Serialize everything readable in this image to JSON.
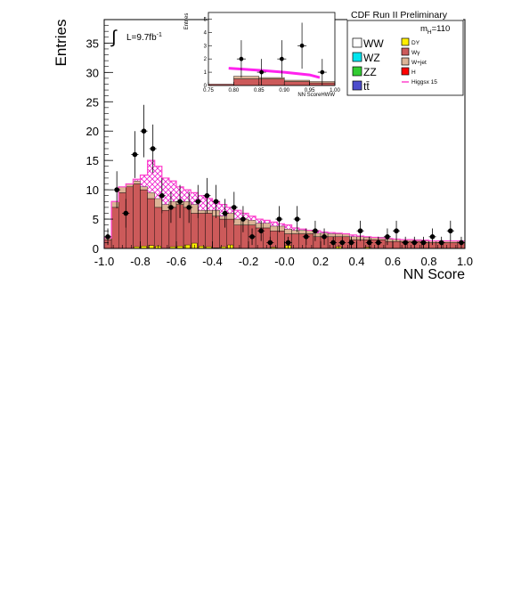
{
  "chart_data": {
    "type": "bar",
    "title": "CDF Run II Preliminary",
    "xlabel": "NN Score",
    "ylabel": "Entries",
    "xlim": [
      -1.0,
      1.0
    ],
    "ylim": [
      0,
      39
    ],
    "x_ticks": [
      "-1.0",
      "-0.8",
      "-0.6",
      "-0.4",
      "-0.2",
      "-0.0",
      "0.2",
      "0.4",
      "0.6",
      "0.8",
      "1.0"
    ],
    "y_ticks": [
      "0",
      "5",
      "10",
      "15",
      "20",
      "25",
      "30",
      "35"
    ],
    "annotations": {
      "luminosity": "L=9.7fb",
      "luminosity_sup": "-1",
      "integral": "∫",
      "mass_label": "m",
      "mass_sub": "H",
      "mass_value": "=110"
    },
    "bin_edges": [
      -1.0,
      -0.96,
      -0.92,
      -0.88,
      -0.84,
      -0.8,
      -0.76,
      -0.72,
      -0.68,
      -0.64,
      -0.6,
      -0.56,
      -0.52,
      -0.48,
      -0.44,
      -0.4,
      -0.36,
      -0.32,
      -0.28,
      -0.24,
      -0.2,
      -0.16,
      -0.12,
      -0.08,
      -0.04,
      0.0,
      0.04,
      0.08,
      0.12,
      0.16,
      0.2,
      0.24,
      0.28,
      0.32,
      0.36,
      0.4,
      0.44,
      0.48,
      0.52,
      0.56,
      0.6,
      0.64,
      0.68,
      0.72,
      0.76,
      0.8,
      0.84,
      0.88,
      0.92,
      0.96,
      1.0
    ],
    "series": [
      {
        "name": "Wγ",
        "color": "#cc5a5a",
        "values": [
          1.5,
          7,
          9.5,
          10.5,
          11,
          10,
          8.5,
          7,
          6.5,
          7,
          7.5,
          7,
          6,
          6,
          6,
          5.5,
          5,
          5,
          4,
          4,
          4,
          3.5,
          3.5,
          3,
          3,
          2.5,
          2.5,
          2.5,
          2.5,
          2,
          2,
          2,
          2,
          2,
          1.5,
          1.5,
          1.5,
          1.5,
          1.5,
          1.2,
          1.2,
          1.2,
          1.2,
          1.2,
          1,
          1,
          1,
          1,
          1,
          1
        ]
      },
      {
        "name": "W+jet",
        "color": "#dcb496",
        "values": [
          0.3,
          1,
          1,
          0.5,
          0.5,
          0.5,
          1,
          1.5,
          1,
          1,
          0.5,
          1,
          1.5,
          0.5,
          0.5,
          1,
          0.5,
          1,
          1,
          1,
          0.8,
          0.8,
          0.8,
          0.8,
          0.8,
          0.8,
          0.6,
          0.6,
          0.6,
          0.6,
          0.6,
          0.5,
          0.5,
          0.5,
          0.5,
          0.5,
          0.4,
          0.4,
          0.4,
          0.4,
          0.4,
          0.3,
          0.3,
          0.3,
          0.3,
          0.3,
          0.3,
          0.3,
          0.3,
          0.3
        ]
      },
      {
        "name": "DY",
        "color": "#ffee00",
        "values": [
          0,
          0,
          0,
          0,
          0.3,
          0.4,
          0.5,
          0.4,
          0,
          0.3,
          0.4,
          0.6,
          0.9,
          0.4,
          0.3,
          0.1,
          0.3,
          0.6,
          0,
          0,
          0,
          0,
          0,
          0.2,
          0,
          0.5,
          0,
          0,
          0,
          0,
          0,
          0,
          0.3,
          0,
          0,
          0,
          0.2,
          0,
          0,
          0,
          0,
          0,
          0,
          0,
          0,
          0,
          0,
          0,
          0,
          0
        ]
      },
      {
        "name": "WW",
        "color": "#ffffff",
        "values": []
      },
      {
        "name": "WZ",
        "color": "#00e5ee",
        "values": []
      },
      {
        "name": "ZZ",
        "color": "#33cc33",
        "values": []
      },
      {
        "name": "tt̄",
        "color": "#4c4ccc",
        "values": []
      },
      {
        "name": "H",
        "color": "#ff0000",
        "values": []
      },
      {
        "name": "Higgsx 15",
        "color": "#ff44cc",
        "values": []
      }
    ],
    "total_top": [
      1.8,
      8,
      10.5,
      11,
      11.8,
      12.5,
      15,
      14,
      12,
      11.5,
      10.5,
      10,
      9.5,
      9,
      8.5,
      8,
      7.5,
      7,
      6.5,
      6,
      5.5,
      5,
      4.8,
      4.5,
      4.2,
      4,
      3.5,
      3.3,
      3.1,
      3,
      2.8,
      2.7,
      2.6,
      2.5,
      2.3,
      2.1,
      2,
      1.9,
      1.8,
      1.7,
      1.6,
      1.5,
      1.5,
      1.4,
      1.4,
      1.3,
      1.3,
      1.3,
      1.3,
      1.3
    ],
    "data_points": {
      "x": [
        -0.98,
        -0.93,
        -0.88,
        -0.83,
        -0.78,
        -0.73,
        -0.68,
        -0.63,
        -0.58,
        -0.53,
        -0.48,
        -0.43,
        -0.38,
        -0.33,
        -0.28,
        -0.23,
        -0.18,
        -0.13,
        -0.08,
        -0.03,
        0.02,
        0.07,
        0.12,
        0.17,
        0.22,
        0.27,
        0.32,
        0.37,
        0.42,
        0.47,
        0.52,
        0.57,
        0.62,
        0.67,
        0.72,
        0.77,
        0.82,
        0.87,
        0.92,
        0.98
      ],
      "y": [
        2,
        10,
        6,
        16,
        20,
        17,
        9,
        7,
        8,
        7,
        8,
        9,
        8,
        6,
        7,
        5,
        2,
        3,
        1,
        5,
        1,
        5,
        2,
        3,
        2,
        1,
        1,
        1,
        3,
        1,
        1,
        2,
        3,
        1,
        1,
        1,
        2,
        1,
        3,
        1
      ]
    },
    "legend": [
      {
        "name": "WW",
        "color": "#ffffff"
      },
      {
        "name": "WZ",
        "color": "#00e5ee"
      },
      {
        "name": "ZZ",
        "color": "#33cc33"
      },
      {
        "name": "tt̄",
        "color": "#4c4ccc"
      },
      {
        "name": "DY",
        "color": "#ffee00"
      },
      {
        "name": "Wγ",
        "color": "#cc5a5a"
      },
      {
        "name": "W+jet",
        "color": "#dcb496"
      },
      {
        "name": "H",
        "color": "#ff0000"
      },
      {
        "name": "Higgsx 15",
        "color": "#ff44cc"
      }
    ],
    "inset": {
      "xlabel": "NN ScoreHWW",
      "ylabel": "Entries",
      "xlim": [
        0.75,
        1.0
      ],
      "ylim": [
        0,
        5.5
      ],
      "x_ticks": [
        "0.75",
        "0.80",
        "0.85",
        "0.90",
        "0.95",
        "1.00"
      ],
      "y_ticks": [
        "0",
        "1",
        "2",
        "3",
        "4",
        "5"
      ],
      "bin_edges": [
        0.75,
        0.8,
        0.85,
        0.9,
        0.95,
        1.0
      ],
      "wgamma": [
        0.1,
        0.5,
        0.5,
        0.3,
        0.2
      ],
      "wjet": [
        0,
        0.2,
        0.1,
        0.1,
        0.1
      ],
      "total_top": [
        0.1,
        0.8,
        0.7,
        0.6,
        0.4
      ],
      "signal_line": [
        [
          0.79,
          1.3
        ],
        [
          0.85,
          1.15
        ],
        [
          0.9,
          1.0
        ],
        [
          0.95,
          0.8
        ],
        [
          0.97,
          0.6
        ]
      ],
      "data_points": {
        "x": [
          0.815,
          0.855,
          0.895,
          0.935,
          0.975
        ],
        "y": [
          2,
          1,
          2,
          3,
          1
        ]
      }
    }
  }
}
